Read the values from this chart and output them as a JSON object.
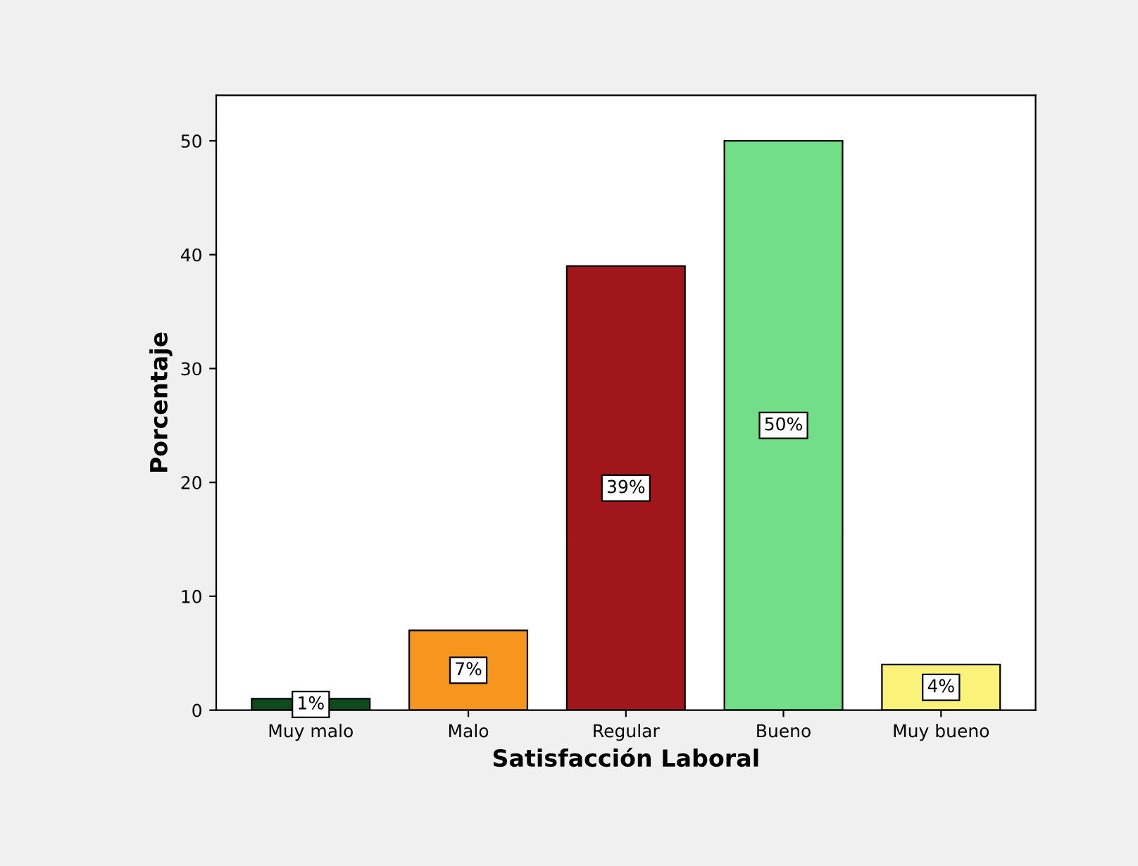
{
  "chart_data": {
    "type": "bar",
    "xlabel": "Satisfacción Laboral",
    "ylabel": "Porcentaje",
    "categories": [
      "Muy malo",
      "Malo",
      "Regular",
      "Bueno",
      "Muy bueno"
    ],
    "values": [
      1,
      7,
      39,
      50,
      4
    ],
    "value_labels": [
      "1%",
      "7%",
      "39%",
      "50%",
      "4%"
    ],
    "colors": [
      "#0f4a1c",
      "#f7961e",
      "#a0161b",
      "#72de88",
      "#fbf27a"
    ],
    "ylim": [
      0,
      54
    ],
    "yticks": [
      0,
      10,
      20,
      30,
      40,
      50
    ],
    "grid": false
  }
}
